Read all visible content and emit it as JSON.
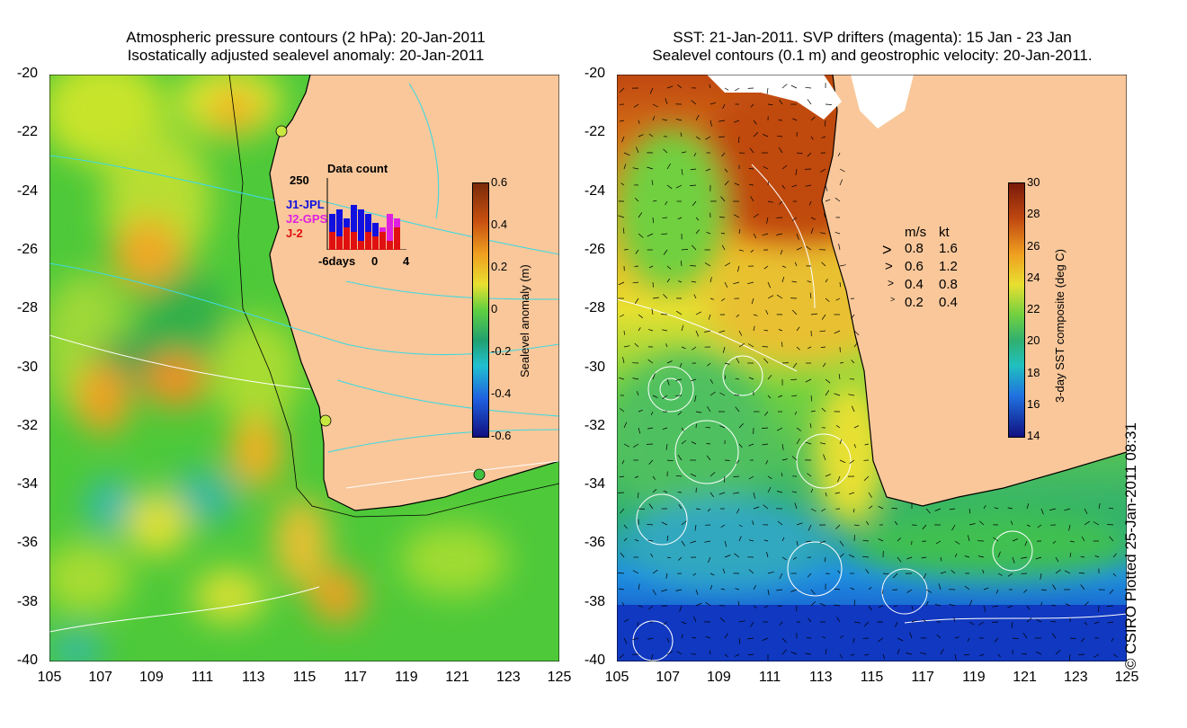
{
  "left_panel": {
    "title_line1": "Atmospheric pressure contours (2 hPa): 20-Jan-2011",
    "title_line2": "Isostatically adjusted sealevel anomaly: 20-Jan-2011",
    "y_ticks": [
      "-20",
      "-22",
      "-24",
      "-26",
      "-28",
      "-30",
      "-32",
      "-34",
      "-36",
      "-38",
      "-40"
    ],
    "x_ticks": [
      "105",
      "107",
      "109",
      "111",
      "113",
      "115",
      "117",
      "119",
      "121",
      "123",
      "125"
    ],
    "colorbar": {
      "label": "Sealevel anomaly (m)",
      "ticks": [
        "0.6",
        "0.4",
        "0.2",
        "0",
        "-0.2",
        "-0.4",
        "-0.6"
      ]
    },
    "data_count": {
      "title": "Data count",
      "max_label": "250",
      "x_labels": [
        "-6days",
        "0",
        "4"
      ],
      "legend": [
        {
          "label": "J1-JPL",
          "color": "#1010e0"
        },
        {
          "label": "J2-GPS",
          "color": "#e020e0"
        },
        {
          "label": "J-2",
          "color": "#e01010"
        }
      ]
    }
  },
  "right_panel": {
    "title_line1": "SST: 21-Jan-2011. SVP drifters (magenta): 15 Jan - 23 Jan",
    "title_line2": "Sealevel contours (0.1 m) and geostrophic velocity: 20-Jan-2011.",
    "y_ticks": [
      "-20",
      "-22",
      "-24",
      "-26",
      "-28",
      "-30",
      "-32",
      "-34",
      "-36",
      "-38",
      "-40"
    ],
    "x_ticks": [
      "105",
      "107",
      "109",
      "111",
      "113",
      "115",
      "117",
      "119",
      "121",
      "123",
      "125"
    ],
    "colorbar": {
      "label": "3-day SST composite (deg C)",
      "ticks": [
        "30",
        "28",
        "26",
        "24",
        "22",
        "20",
        "18",
        "16",
        "14"
      ]
    },
    "velocity_legend": {
      "header_ms": "m/s",
      "header_kt": "kt",
      "rows": [
        {
          "ms": "0.8",
          "kt": "1.6"
        },
        {
          "ms": "0.6",
          "kt": "1.2"
        },
        {
          "ms": "0.4",
          "kt": "0.8"
        },
        {
          "ms": "0.2",
          "kt": "0.4"
        }
      ]
    }
  },
  "copyright": "© CSIRO Plotted 25-Jan-2011 08:31",
  "colors": {
    "land": "#f9c79a",
    "coast": "#000000",
    "contour_cyan": "#40d8e0",
    "contour_white": "#ffffff"
  }
}
